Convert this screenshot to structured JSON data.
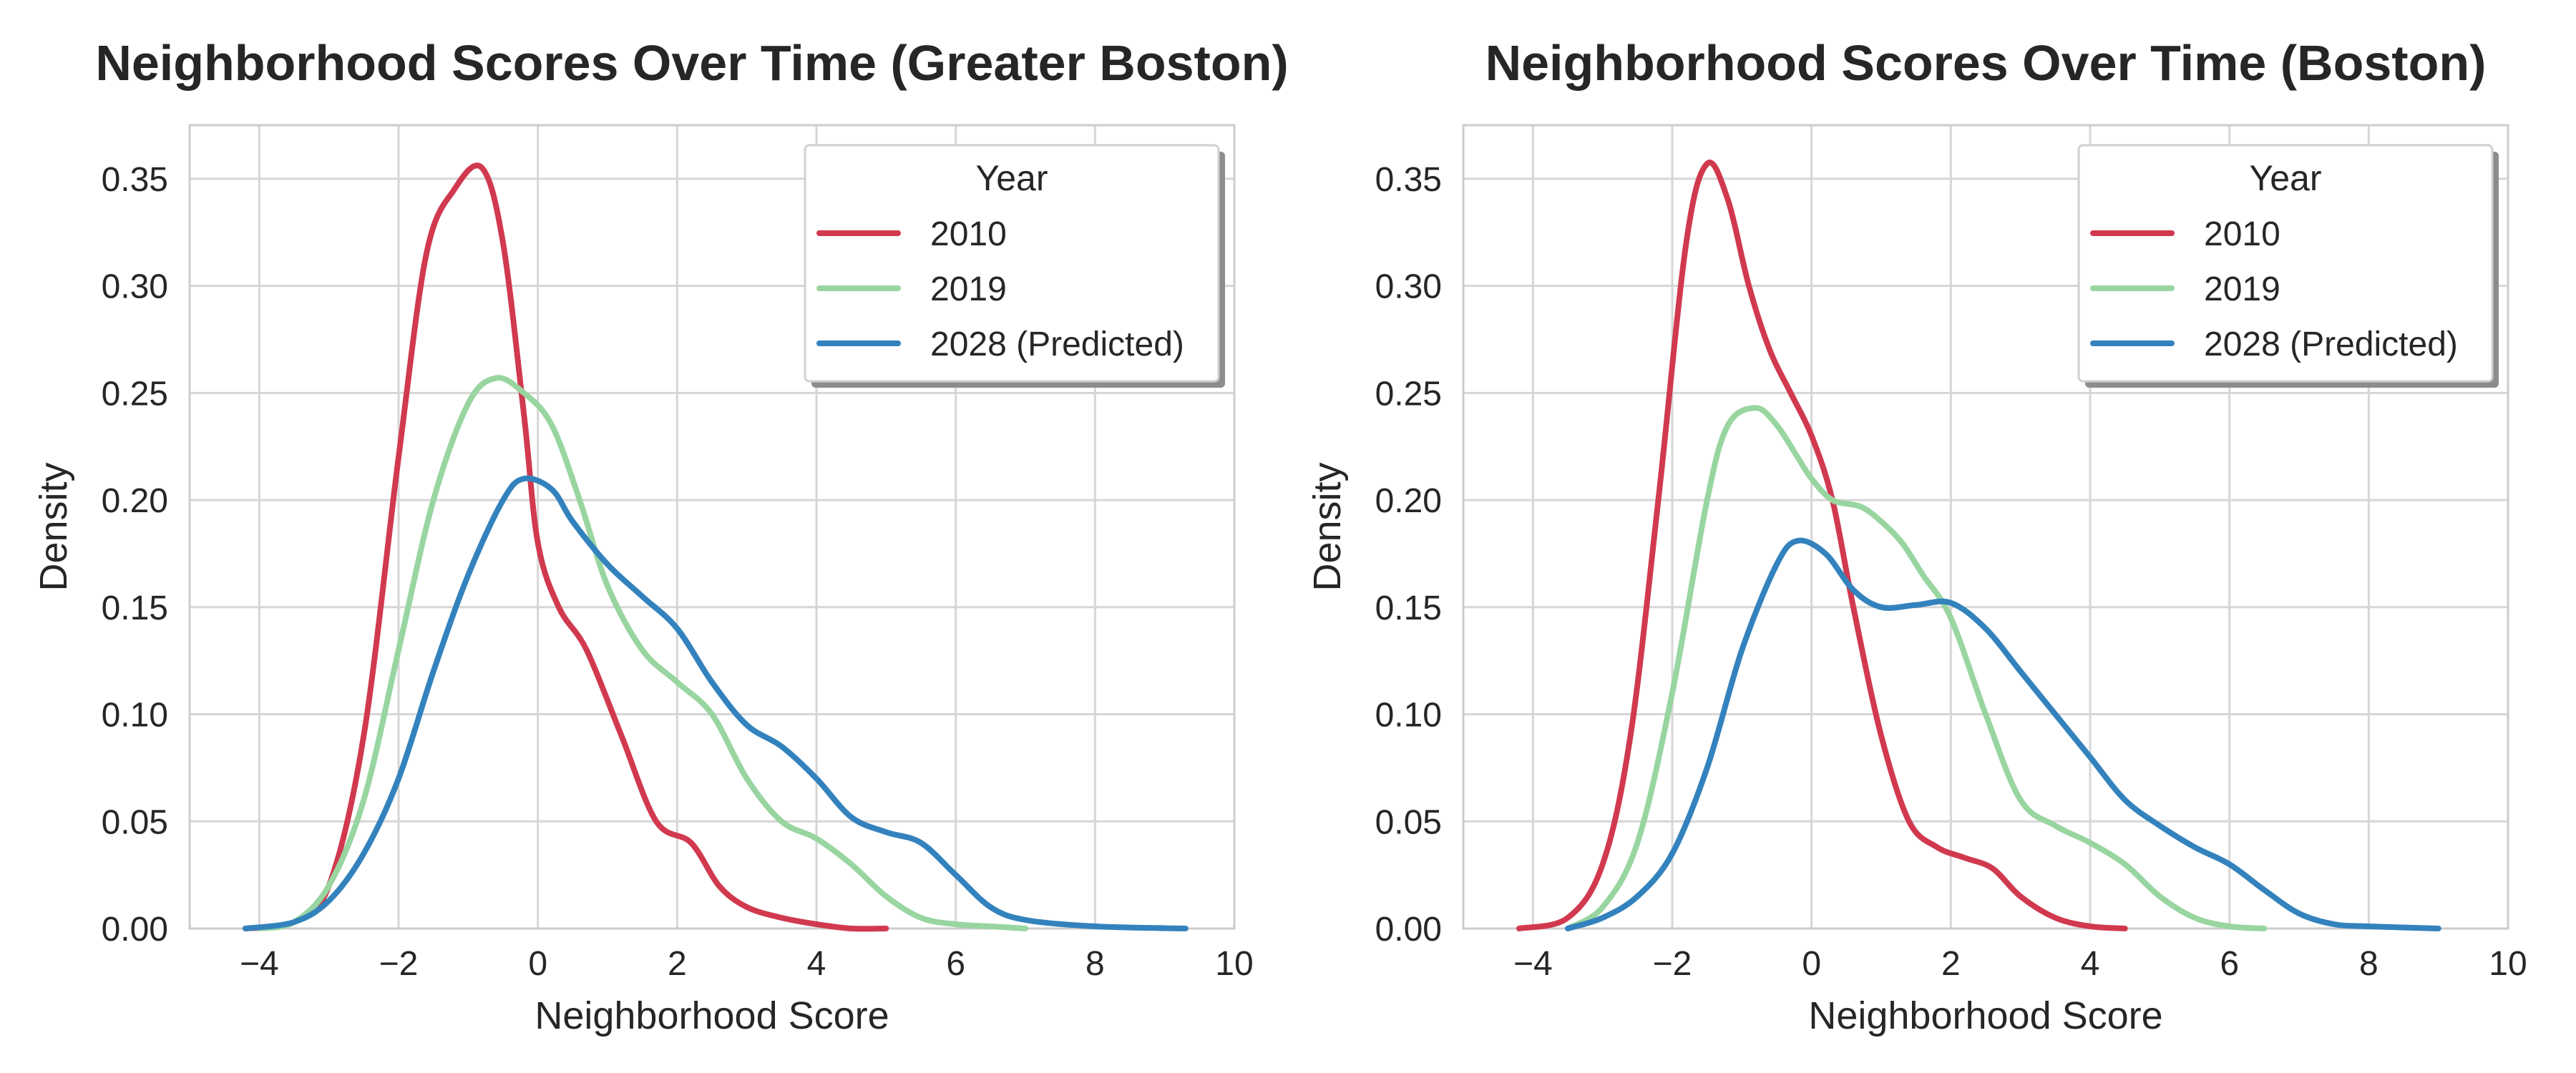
{
  "chart_data": [
    {
      "type": "line",
      "title": "Neighborhood Scores Over Time (Greater Boston)",
      "xlabel": "Neighborhood Score",
      "ylabel": "Density",
      "xlim": [
        -5,
        10
      ],
      "ylim": [
        0,
        0.375
      ],
      "x_ticks": [
        "−4",
        "−2",
        "0",
        "2",
        "4",
        "6",
        "8",
        "10"
      ],
      "y_ticks": [
        "0.00",
        "0.05",
        "0.10",
        "0.15",
        "0.20",
        "0.25",
        "0.30",
        "0.35"
      ],
      "grid": true,
      "legend": {
        "title": "Year",
        "position": "top-right"
      },
      "series": [
        {
          "name": "2010",
          "color": "#d1394f",
          "x": [
            -4.2,
            -3.5,
            -3.0,
            -2.5,
            -2.0,
            -1.6,
            -1.2,
            -0.8,
            -0.5,
            -0.2,
            0.0,
            0.3,
            0.7,
            1.2,
            1.7,
            2.2,
            2.6,
            3.0,
            3.5,
            4.0,
            4.5,
            5.0
          ],
          "y": [
            0.0,
            0.003,
            0.02,
            0.09,
            0.22,
            0.315,
            0.345,
            0.355,
            0.32,
            0.24,
            0.18,
            0.15,
            0.13,
            0.09,
            0.05,
            0.04,
            0.02,
            0.01,
            0.005,
            0.002,
            0.0,
            0.0
          ]
        },
        {
          "name": "2019",
          "color": "#98d5a0",
          "x": [
            -4.0,
            -3.5,
            -3.0,
            -2.5,
            -2.0,
            -1.5,
            -1.0,
            -0.6,
            -0.2,
            0.2,
            0.6,
            1.0,
            1.5,
            2.0,
            2.5,
            3.0,
            3.5,
            4.0,
            4.5,
            5.0,
            5.5,
            6.0,
            6.5,
            7.0
          ],
          "y": [
            0.0,
            0.003,
            0.02,
            0.06,
            0.13,
            0.2,
            0.245,
            0.257,
            0.25,
            0.235,
            0.2,
            0.16,
            0.13,
            0.115,
            0.1,
            0.07,
            0.05,
            0.042,
            0.03,
            0.015,
            0.005,
            0.002,
            0.001,
            0.0
          ]
        },
        {
          "name": "2028 (Predicted)",
          "color": "#3382bd",
          "x": [
            -4.2,
            -3.5,
            -3.0,
            -2.5,
            -2.0,
            -1.5,
            -1.0,
            -0.5,
            -0.2,
            0.2,
            0.5,
            1.0,
            1.5,
            2.0,
            2.5,
            3.0,
            3.5,
            4.0,
            4.5,
            5.0,
            5.5,
            6.0,
            6.5,
            7.0,
            8.0,
            9.3
          ],
          "y": [
            0.0,
            0.003,
            0.013,
            0.035,
            0.07,
            0.12,
            0.165,
            0.2,
            0.21,
            0.205,
            0.19,
            0.17,
            0.155,
            0.14,
            0.115,
            0.095,
            0.085,
            0.07,
            0.052,
            0.045,
            0.04,
            0.025,
            0.01,
            0.004,
            0.001,
            0.0
          ]
        }
      ]
    },
    {
      "type": "line",
      "title": "Neighborhood Scores Over Time (Boston)",
      "xlabel": "Neighborhood Score",
      "ylabel": "Density",
      "xlim": [
        -5,
        10
      ],
      "ylim": [
        0,
        0.375
      ],
      "x_ticks": [
        "−4",
        "−2",
        "0",
        "2",
        "4",
        "6",
        "8",
        "10"
      ],
      "y_ticks": [
        "0.00",
        "0.05",
        "0.10",
        "0.15",
        "0.20",
        "0.25",
        "0.30",
        "0.35"
      ],
      "grid": true,
      "legend": {
        "title": "Year",
        "position": "top-right"
      },
      "series": [
        {
          "name": "2010",
          "color": "#d1394f",
          "x": [
            -4.2,
            -3.5,
            -3.0,
            -2.6,
            -2.2,
            -1.8,
            -1.5,
            -1.2,
            -0.9,
            -0.6,
            -0.3,
            0.0,
            0.3,
            0.6,
            1.0,
            1.4,
            1.8,
            2.2,
            2.6,
            3.0,
            3.5,
            4.0,
            4.5
          ],
          "y": [
            0.0,
            0.005,
            0.03,
            0.09,
            0.2,
            0.32,
            0.357,
            0.34,
            0.3,
            0.27,
            0.25,
            0.23,
            0.2,
            0.15,
            0.09,
            0.05,
            0.038,
            0.033,
            0.028,
            0.015,
            0.005,
            0.001,
            0.0
          ]
        },
        {
          "name": "2019",
          "color": "#98d5a0",
          "x": [
            -3.5,
            -3.0,
            -2.5,
            -2.0,
            -1.5,
            -1.2,
            -0.8,
            -0.5,
            -0.2,
            0.0,
            0.3,
            0.7,
            1.0,
            1.3,
            1.6,
            2.0,
            2.5,
            3.0,
            3.5,
            4.0,
            4.5,
            5.0,
            5.5,
            6.0,
            6.5
          ],
          "y": [
            0.0,
            0.01,
            0.04,
            0.11,
            0.2,
            0.235,
            0.243,
            0.235,
            0.22,
            0.21,
            0.2,
            0.197,
            0.19,
            0.18,
            0.165,
            0.145,
            0.1,
            0.06,
            0.048,
            0.04,
            0.03,
            0.015,
            0.005,
            0.001,
            0.0
          ]
        },
        {
          "name": "2028 (Predicted)",
          "color": "#3382bd",
          "x": [
            -3.5,
            -3.0,
            -2.5,
            -2.0,
            -1.5,
            -1.0,
            -0.5,
            -0.2,
            0.2,
            0.6,
            1.0,
            1.5,
            2.0,
            2.5,
            3.0,
            3.5,
            4.0,
            4.5,
            5.0,
            5.5,
            6.0,
            6.5,
            7.0,
            7.5,
            8.0,
            9.0
          ],
          "y": [
            0.0,
            0.005,
            0.015,
            0.035,
            0.075,
            0.13,
            0.17,
            0.181,
            0.175,
            0.158,
            0.15,
            0.151,
            0.152,
            0.14,
            0.12,
            0.1,
            0.08,
            0.06,
            0.048,
            0.038,
            0.03,
            0.018,
            0.007,
            0.002,
            0.001,
            0.0
          ]
        }
      ]
    }
  ]
}
